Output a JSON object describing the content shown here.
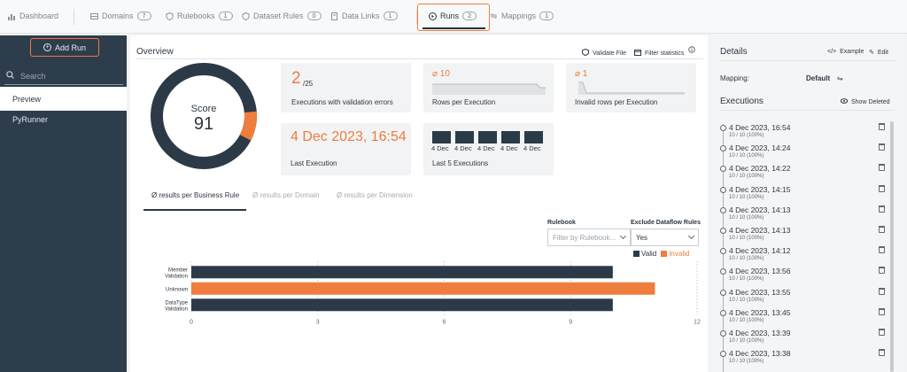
{
  "nav": {
    "items": [
      {
        "label": "Dashboard",
        "icon": "chart-icon",
        "badge": ""
      },
      {
        "label": "Domains",
        "icon": "database-icon",
        "badge": "7"
      },
      {
        "label": "Rulebooks",
        "icon": "shield-icon",
        "badge": "1"
      },
      {
        "label": "Dataset Rules",
        "icon": "shield-icon",
        "badge": "0"
      },
      {
        "label": "Data Links",
        "icon": "document-icon",
        "badge": "1"
      },
      {
        "label": "Runs",
        "icon": "play-icon",
        "badge": "2"
      },
      {
        "label": "Mappings",
        "icon": "arrows-icon",
        "badge": "1"
      }
    ],
    "active": "Runs"
  },
  "sidebar": {
    "add_run_label": "Add Run",
    "search_placeholder": "Search",
    "items": [
      "Preview",
      "PyRunner"
    ]
  },
  "overview": {
    "title": "Overview",
    "validate_file": "Validate File",
    "filter_statistics": "Filter statistics",
    "score_label": "Score",
    "score_value": "91",
    "score_fraction": 0.91,
    "exec_errors_value": "2",
    "exec_errors_total": "/25",
    "exec_errors_label": "Executions with validation errors",
    "rows_per_exec_value": "⌀ 10",
    "rows_per_exec_label": "Rows per Execution",
    "invalid_rows_value": "⌀ 1",
    "invalid_rows_label": "Invalid rows per Execution",
    "last_execution_value": "4 Dec 2023, 16:54",
    "last_execution_label": "Last Execution",
    "last5_labels": [
      "4 Dec",
      "4 Dec",
      "4 Dec",
      "4 Dec",
      "4 Dec"
    ],
    "last5_label": "Last 5 Executions"
  },
  "tabs": {
    "items": [
      "Ø results per Business Rule",
      "Ø results per Domain",
      "Ø results per Dimension"
    ],
    "active": 0
  },
  "filters": {
    "rulebook_label": "Rulebook",
    "rulebook_placeholder": "Filter by Rulebook...",
    "exclude_label": "Exclude Dataflow Rules",
    "exclude_value": "Yes"
  },
  "chart_data": {
    "type": "bar",
    "orientation": "horizontal",
    "categories": [
      [
        "Member",
        "Validation"
      ],
      [
        "Unknown"
      ],
      [
        "DataType",
        "Validation"
      ]
    ],
    "series": [
      {
        "name": "Valid",
        "values": [
          10,
          0,
          10
        ],
        "color": "#2c3a48"
      },
      {
        "name": "Invalid",
        "values": [
          0,
          11,
          0
        ],
        "color": "#ee7d3e"
      }
    ],
    "xlim": [
      0,
      12
    ],
    "xticks": [
      0,
      3,
      6,
      9,
      12
    ],
    "legend": "top-right",
    "grid": "dotted"
  },
  "details": {
    "title": "Details",
    "example": "Example",
    "edit": "Edit",
    "mapping_label": "Mapping:",
    "mapping_value": "Default",
    "executions_title": "Executions",
    "show_deleted": "Show Deleted",
    "executions": [
      {
        "date": "4 Dec 2023, 16:54",
        "count": "10 / 10 (100%)"
      },
      {
        "date": "4 Dec 2023, 14:24",
        "count": "10 / 10 (100%)"
      },
      {
        "date": "4 Dec 2023, 14:22",
        "count": "10 / 10 (100%)"
      },
      {
        "date": "4 Dec 2023, 14:15",
        "count": "10 / 10 (100%)"
      },
      {
        "date": "4 Dec 2023, 14:13",
        "count": "10 / 10 (100%)"
      },
      {
        "date": "4 Dec 2023, 14:13",
        "count": "10 / 10 (100%)"
      },
      {
        "date": "4 Dec 2023, 14:12",
        "count": "10 / 10 (100%)"
      },
      {
        "date": "4 Dec 2023, 13:56",
        "count": "10 / 10 (100%)"
      },
      {
        "date": "4 Dec 2023, 13:55",
        "count": "10 / 10 (100%)"
      },
      {
        "date": "4 Dec 2023, 13:45",
        "count": "10 / 10 (100%)"
      },
      {
        "date": "4 Dec 2023, 13:39",
        "count": "10 / 10 (100%)"
      },
      {
        "date": "4 Dec 2023, 13:38",
        "count": "10 / 10 (100%)"
      }
    ]
  },
  "colors": {
    "accent": "#ee7d3e",
    "dark": "#2c3a48",
    "sidebar": "#2e3d4c"
  }
}
